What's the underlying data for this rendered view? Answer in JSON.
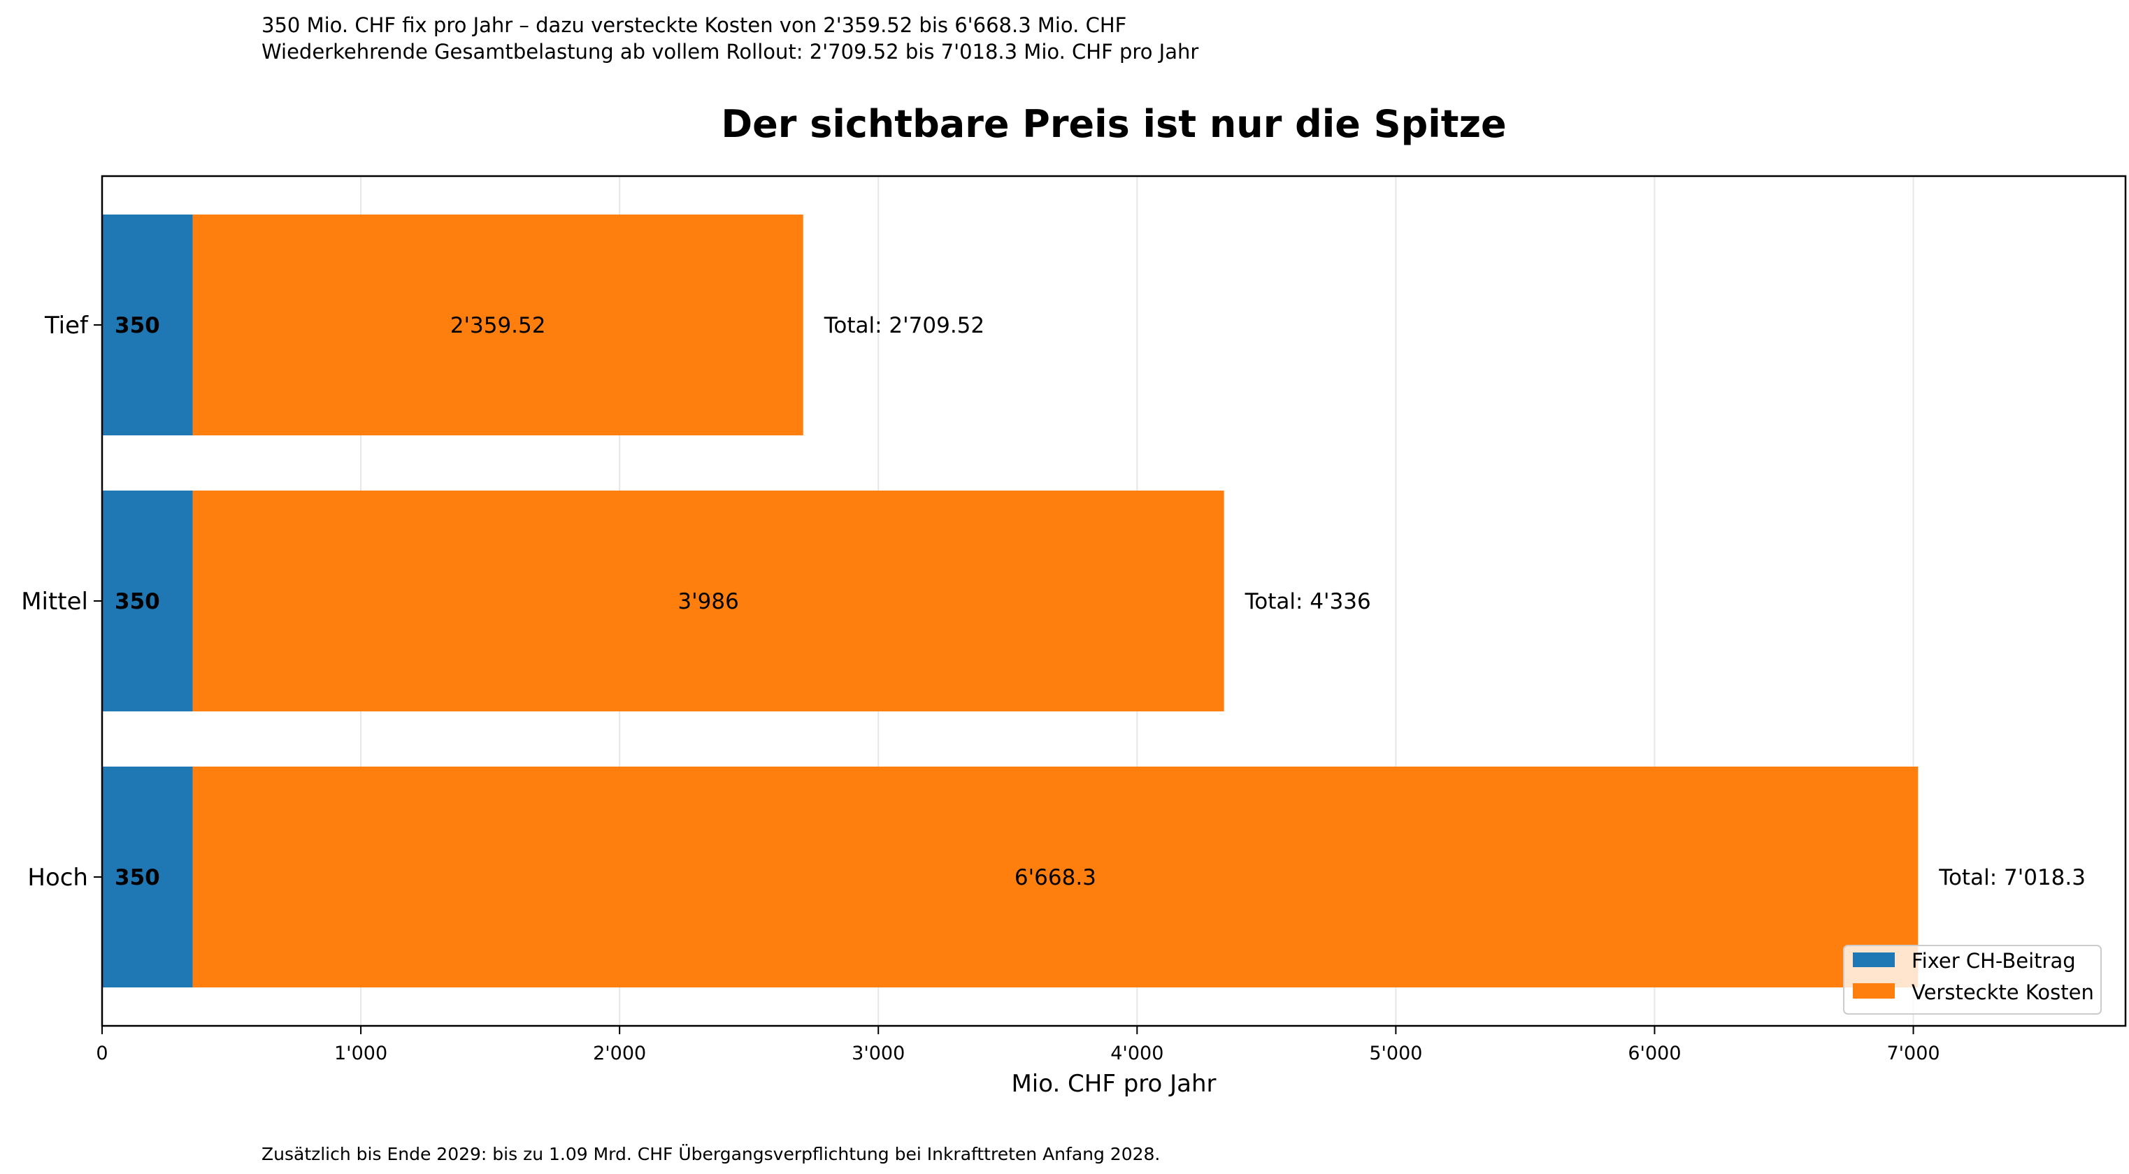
{
  "header": {
    "subtitle_line1": "350 Mio. CHF fix pro Jahr – dazu versteckte Kosten von 2'359.52 bis 6'668.3 Mio. CHF",
    "subtitle_line2": "Wiederkehrende Gesamtbelastung ab vollem Rollout: 2'709.52 bis 7'018.3 Mio. CHF pro Jahr"
  },
  "footer": {
    "note": "Zusätzlich bis Ende 2029: bis zu 1.09 Mrd. CHF Übergangsverpflichtung bei Inkrafttreten Anfang 2028."
  },
  "chart_data": {
    "type": "bar",
    "orientation": "horizontal",
    "stacked": true,
    "title": "Der sichtbare Preis ist nur die Spitze",
    "xlabel": "Mio. CHF pro Jahr",
    "ylabel": "",
    "categories": [
      "Tief",
      "Mittel",
      "Hoch"
    ],
    "series": [
      {
        "name": "Fixer CH-Beitrag",
        "color": "#1f77b4",
        "values": [
          350,
          350,
          350
        ],
        "labels": [
          "350",
          "350",
          "350"
        ]
      },
      {
        "name": "Versteckte Kosten",
        "color": "#ff7f0e",
        "values": [
          2359.52,
          3986,
          6668.3
        ],
        "labels": [
          "2'359.52",
          "3'986",
          "6'668.3"
        ]
      }
    ],
    "total_labels": [
      "Total: 2'709.52",
      "Total: 4'336",
      "Total: 7'018.3"
    ],
    "xlim": [
      0,
      7820
    ],
    "xticks": [
      0,
      1000,
      2000,
      3000,
      4000,
      5000,
      6000,
      7000
    ],
    "xtick_labels": [
      "0",
      "1'000",
      "2'000",
      "3'000",
      "4'000",
      "5'000",
      "6'000",
      "7'000"
    ],
    "grid": "x",
    "legend": "lower-right"
  }
}
